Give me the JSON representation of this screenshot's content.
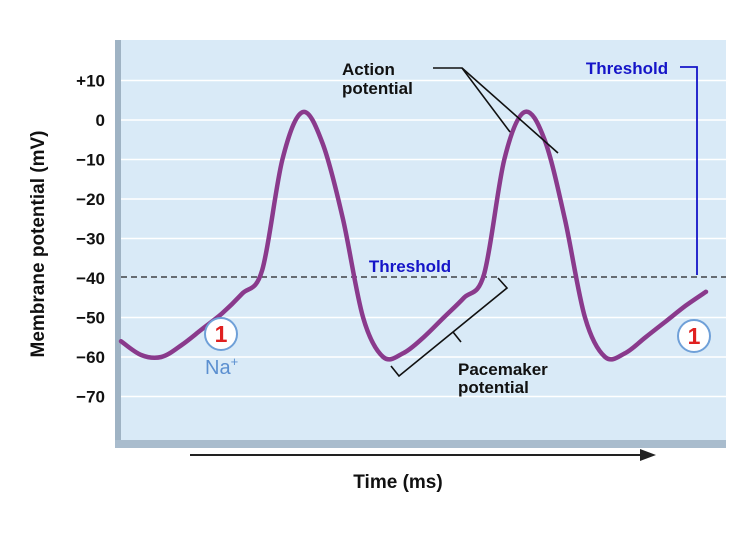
{
  "chart_data": {
    "type": "line",
    "title": "",
    "xlabel": "Time (ms)",
    "ylabel": "Membrane potential (mV)",
    "ylim": [
      -80,
      20
    ],
    "yticks": [
      {
        "value": 10,
        "label": "+10"
      },
      {
        "value": 0,
        "label": "0"
      },
      {
        "value": -10,
        "label": "−10"
      },
      {
        "value": -20,
        "label": "−20"
      },
      {
        "value": -30,
        "label": "−30"
      },
      {
        "value": -40,
        "label": "−40"
      },
      {
        "value": -50,
        "label": "−50"
      },
      {
        "value": -60,
        "label": "−60"
      },
      {
        "value": -70,
        "label": "−70"
      }
    ],
    "threshold": -40,
    "grid": true,
    "series": [
      {
        "color": "#8a3a8c",
        "y": [
          -56,
          -59.5,
          -60,
          -57,
          -53,
          -49,
          -44,
          -38,
          -10,
          2,
          -6,
          -25,
          -50,
          -60,
          -59,
          -55,
          -50,
          -45,
          -39,
          -10,
          2,
          -5,
          -25,
          -50,
          -60,
          -59,
          -55,
          -51,
          -47,
          -43.5
        ]
      }
    ]
  },
  "labels": {
    "threshold_mid": "Threshold",
    "threshold_top": "Threshold",
    "action_line1": "Action",
    "action_line2": "potential",
    "pacemaker_line1": "Pacemaker",
    "pacemaker_line2": "potential",
    "step_number": "1",
    "ion_prefix": "Na",
    "ion_charge": "+"
  },
  "colors": {
    "plot_bg": "#d9eaf7",
    "grid": "#ffffff",
    "curve": "#8a3a8c",
    "threshold_text": "#1515c8",
    "badge": "#e02020",
    "ion_text": "#5b8fd0"
  }
}
